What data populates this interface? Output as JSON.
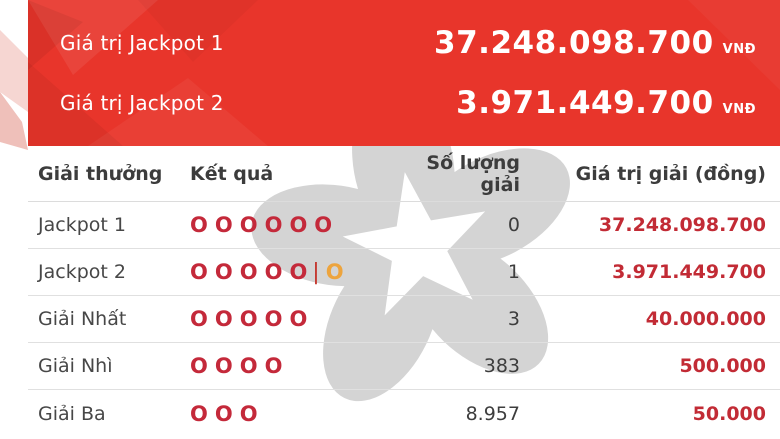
{
  "banner": {
    "rows": [
      {
        "label": "Giá trị Jackpot 1",
        "value": "37.248.098.700",
        "currency": "VNĐ"
      },
      {
        "label": "Giá trị Jackpot 2",
        "value": "3.971.449.700",
        "currency": "VNĐ"
      }
    ]
  },
  "table": {
    "headers": [
      "Giải thưởng",
      "Kết quả",
      "Số lượng giải",
      "Giá trị giải (đồng)"
    ],
    "result_symbol": "O",
    "separator_symbol": "|",
    "rows": [
      {
        "prize": "Jackpot 1",
        "result": {
          "main": 6,
          "bonus": false
        },
        "count": "0",
        "value": "37.248.098.700"
      },
      {
        "prize": "Jackpot 2",
        "result": {
          "main": 5,
          "bonus": true
        },
        "count": "1",
        "value": "3.971.449.700"
      },
      {
        "prize": "Giải Nhất",
        "result": {
          "main": 5,
          "bonus": false
        },
        "count": "3",
        "value": "40.000.000"
      },
      {
        "prize": "Giải Nhì",
        "result": {
          "main": 4,
          "bonus": false
        },
        "count": "383",
        "value": "500.000"
      },
      {
        "prize": "Giải Ba",
        "result": {
          "main": 3,
          "bonus": false
        },
        "count": "8.957",
        "value": "50.000"
      }
    ]
  },
  "watermark": "vietlott-flower-logo",
  "colors": {
    "banner-red": "#e8352b",
    "value-red": "#c22b35",
    "ball-red": "#c4293a",
    "bonus-orange": "#eda43d",
    "watermark-gray": "#d4d4d4",
    "divider-gray": "#e0e0e0",
    "header-text": "#3c3c3c",
    "body-text": "#474747",
    "count-text": "#3d3d3d",
    "banner-text": "#ffffff"
  }
}
